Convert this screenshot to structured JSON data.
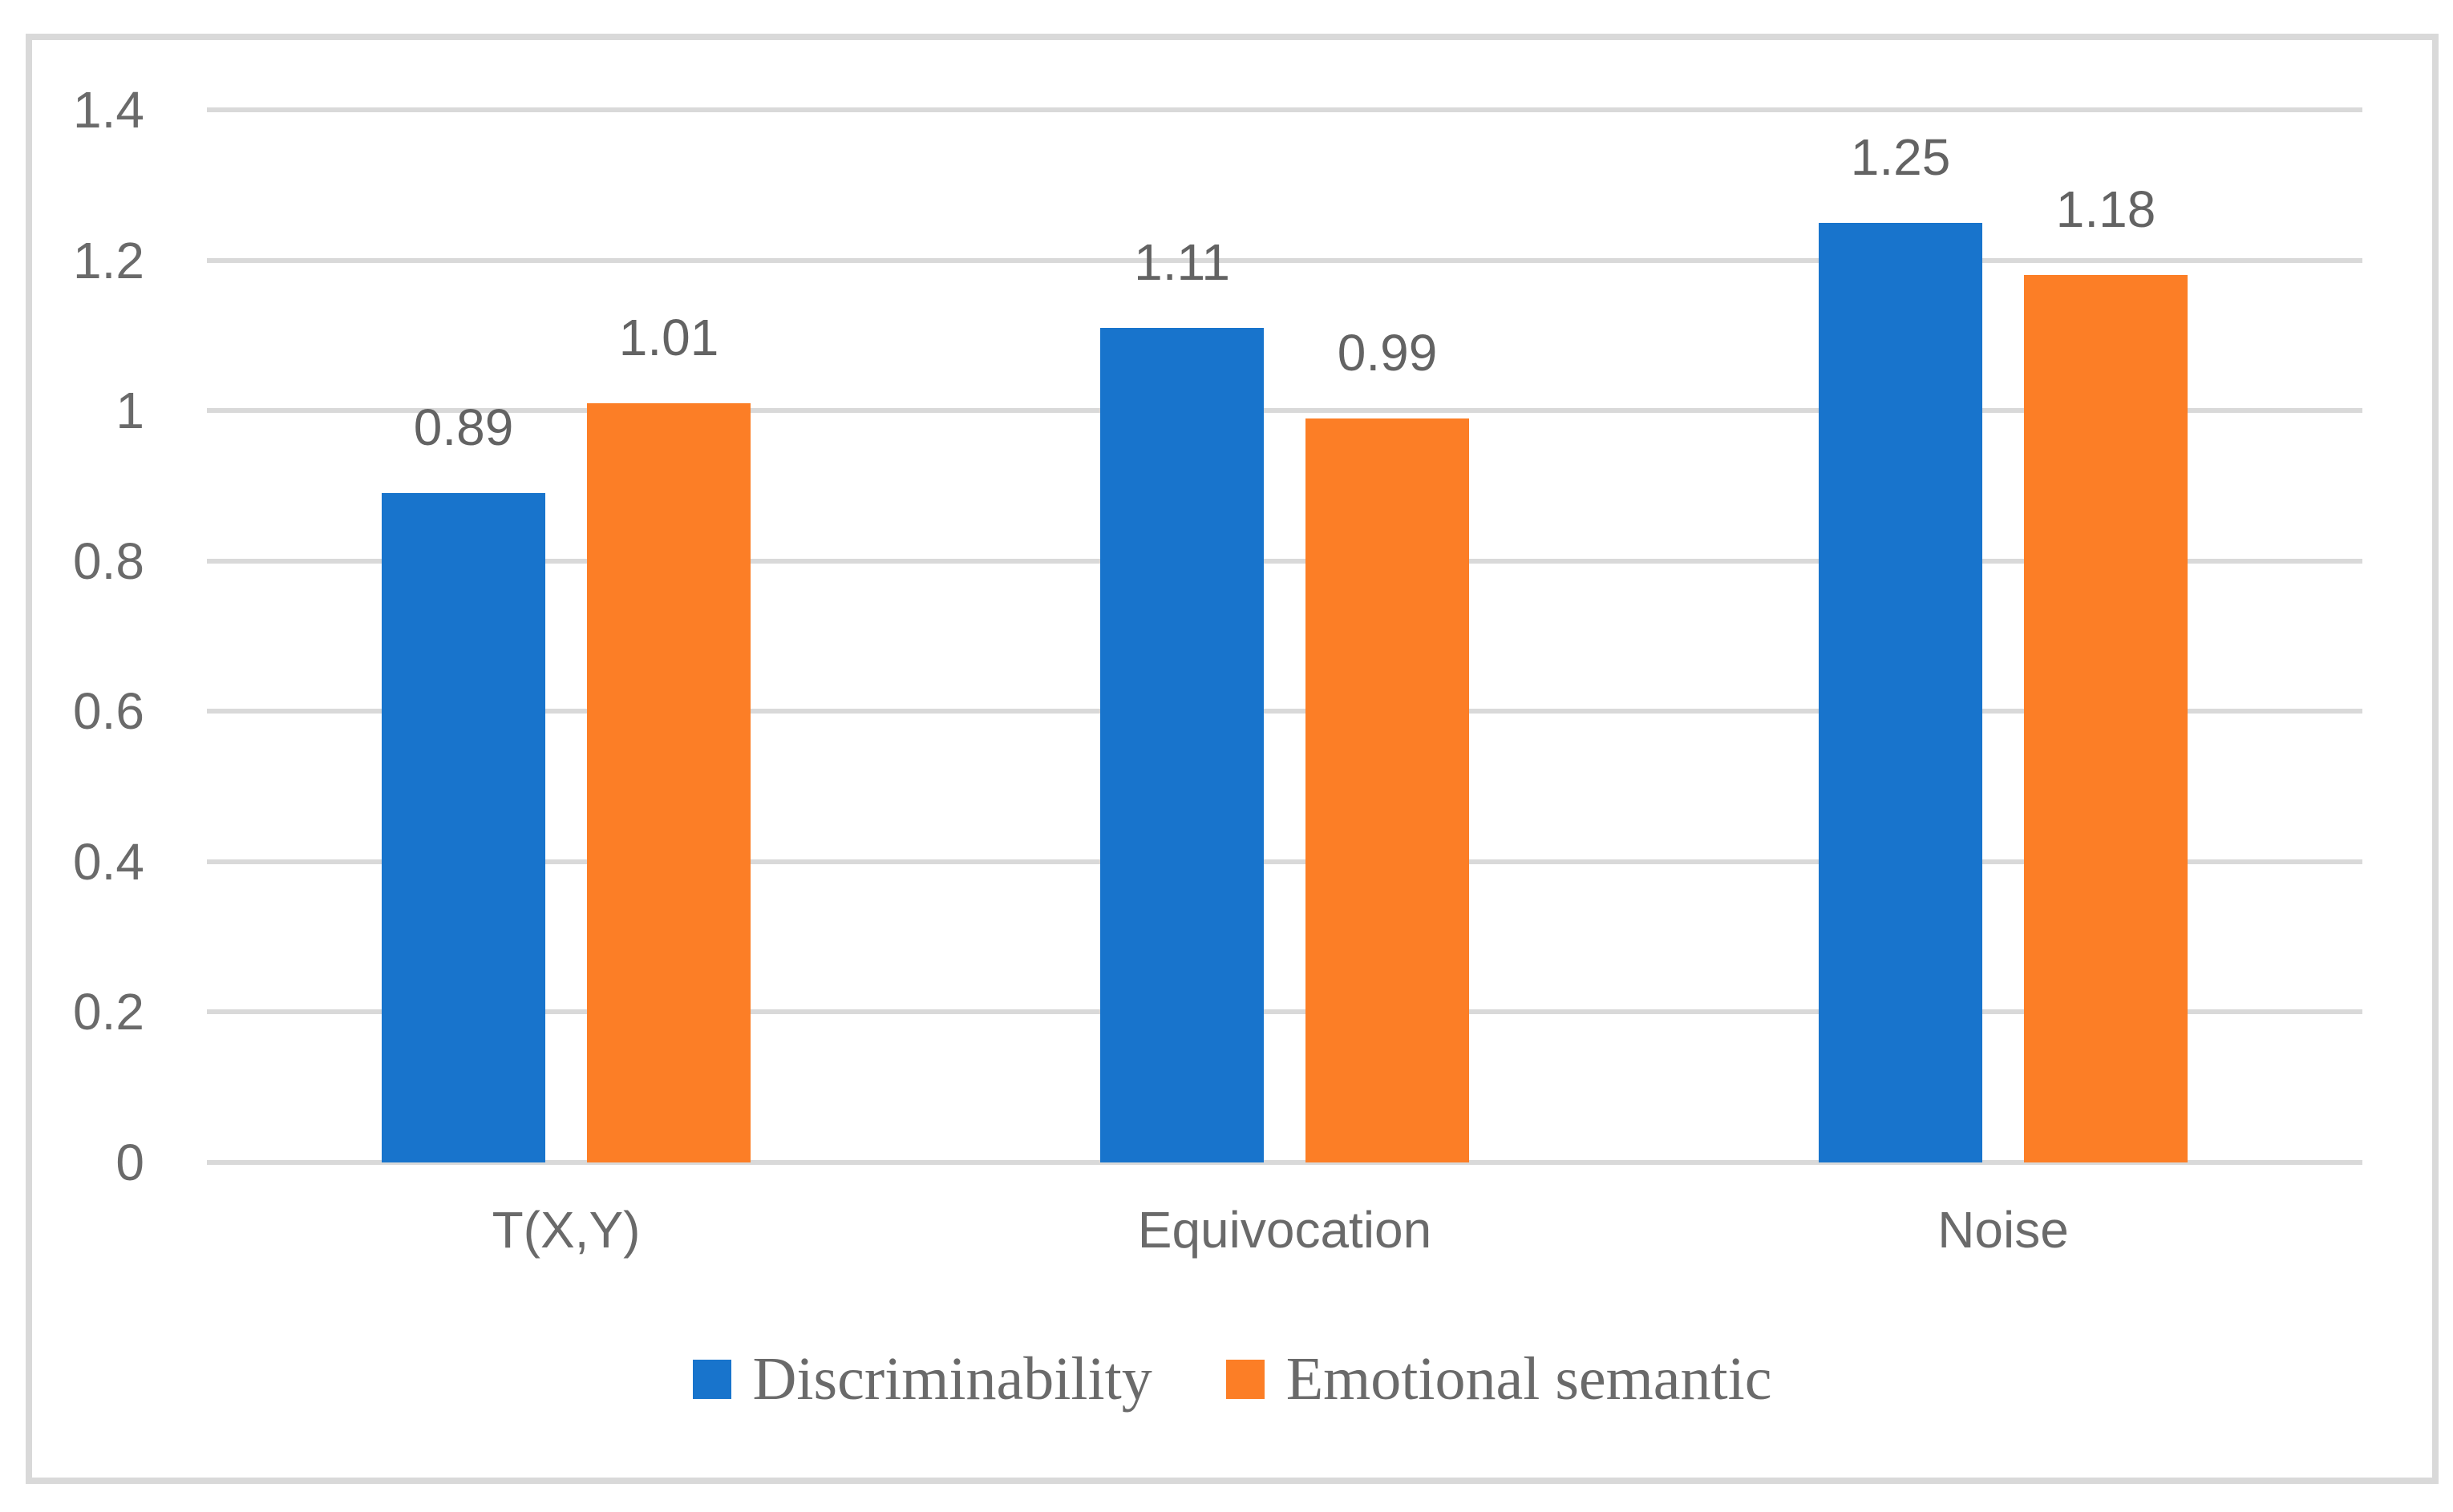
{
  "figure": {
    "background": "#ffffff",
    "border_color": "#D9D9D9",
    "gridline_color": "#D9D9D9",
    "text_color": "#6A6A6A"
  },
  "chart_data": {
    "type": "bar",
    "title": "",
    "xlabel": "",
    "ylabel": "",
    "categories": [
      "T(X,Y)",
      "Equivocation",
      "Noise"
    ],
    "series": [
      {
        "name": "Discriminability",
        "color": "#1874CC",
        "values": [
          0.89,
          1.11,
          1.25
        ],
        "labels": [
          "0.89",
          "1.11",
          "1.25"
        ]
      },
      {
        "name": "Emotional semantic",
        "color": "#FC7E26",
        "values": [
          1.01,
          0.99,
          1.18
        ],
        "labels": [
          "1.01",
          "0.99",
          "1.18"
        ]
      }
    ],
    "ylim": [
      0,
      1.4
    ],
    "yticks": [
      0,
      0.2,
      0.4,
      0.6,
      0.8,
      1,
      1.2,
      1.4
    ],
    "ytick_labels": [
      "0",
      "0.2",
      "0.4",
      "0.6",
      "0.8",
      "1",
      "1.2",
      "1.4"
    ],
    "grid": true,
    "legend_position": "bottom"
  }
}
